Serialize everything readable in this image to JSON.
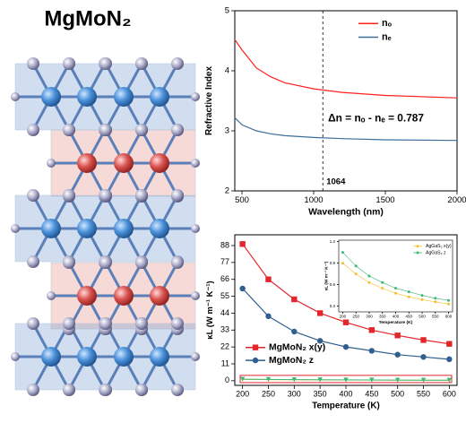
{
  "title": "MgMoN₂",
  "chart_data": [
    {
      "type": "line",
      "ylabel": "Refractive Index",
      "xlabel": "Wavelength (nm)",
      "x": [
        450,
        500,
        600,
        700,
        800,
        1000,
        1200,
        1500,
        2000
      ],
      "series": [
        {
          "name": "nₒ",
          "color": "#ff1f1f",
          "values": [
            4.52,
            4.35,
            4.05,
            3.9,
            3.8,
            3.7,
            3.64,
            3.59,
            3.55
          ]
        },
        {
          "name": "nₑ",
          "color": "#3d6f9a",
          "values": [
            3.22,
            3.1,
            3.0,
            2.95,
            2.92,
            2.89,
            2.87,
            2.85,
            2.84
          ]
        }
      ],
      "xlim": [
        450,
        2000
      ],
      "xticks": [
        500,
        1000,
        1500,
        2000
      ],
      "ylim": [
        2,
        5
      ],
      "yticks": [
        2,
        3,
        4,
        5
      ],
      "legend": "upper right",
      "vline": 1064,
      "annotation": "Δn = nₒ - nₑ = 0.787"
    },
    {
      "type": "line",
      "ylabel": "κL (W m⁻¹ K⁻¹)",
      "xlabel": "Temperature (K)",
      "x": [
        200,
        250,
        300,
        350,
        400,
        450,
        500,
        550,
        600
      ],
      "series": [
        {
          "name": "MgMoN₂ x(y)",
          "color": "#e3262b",
          "marker": "square",
          "values": [
            89,
            66,
            53,
            44,
            38,
            33,
            29.5,
            26.5,
            24
          ]
        },
        {
          "name": "MgMoN₂ z",
          "color": "#2f5f8f",
          "marker": "circle",
          "values": [
            60,
            42,
            32,
            26,
            22,
            19.5,
            17,
            15.5,
            14
          ]
        }
      ],
      "xlim": [
        185,
        615
      ],
      "xticks": [
        200,
        250,
        300,
        350,
        400,
        450,
        500,
        550,
        600
      ],
      "ylim": [
        -3,
        95
      ],
      "yticks": [
        0,
        11,
        22,
        33,
        44,
        55,
        66,
        77,
        88
      ],
      "legend": "lower left"
    },
    {
      "type": "line",
      "inset": true,
      "ylabel": "κL (W m⁻¹ K⁻¹)",
      "xlabel": "Temperature (K)",
      "x": [
        200,
        250,
        300,
        350,
        400,
        450,
        500,
        550,
        600
      ],
      "series": [
        {
          "name": "AgGaS₂ x(y)",
          "color": "#f2c12e",
          "marker": "circle",
          "values": [
            0.9,
            0.75,
            0.63,
            0.55,
            0.48,
            0.43,
            0.39,
            0.36,
            0.33
          ]
        },
        {
          "name": "AgGaS₂ z",
          "color": "#3cb878",
          "marker": "circle",
          "values": [
            1.05,
            0.86,
            0.72,
            0.63,
            0.55,
            0.5,
            0.45,
            0.41,
            0.38
          ]
        }
      ],
      "xlim": [
        185,
        615
      ],
      "xticks": [
        200,
        250,
        300,
        350,
        400,
        450,
        500,
        550,
        600
      ],
      "ylim": [
        0.22,
        1.22
      ],
      "yticks": [
        0.3,
        0.6,
        0.9,
        1.2
      ],
      "legend": "upper right"
    }
  ]
}
